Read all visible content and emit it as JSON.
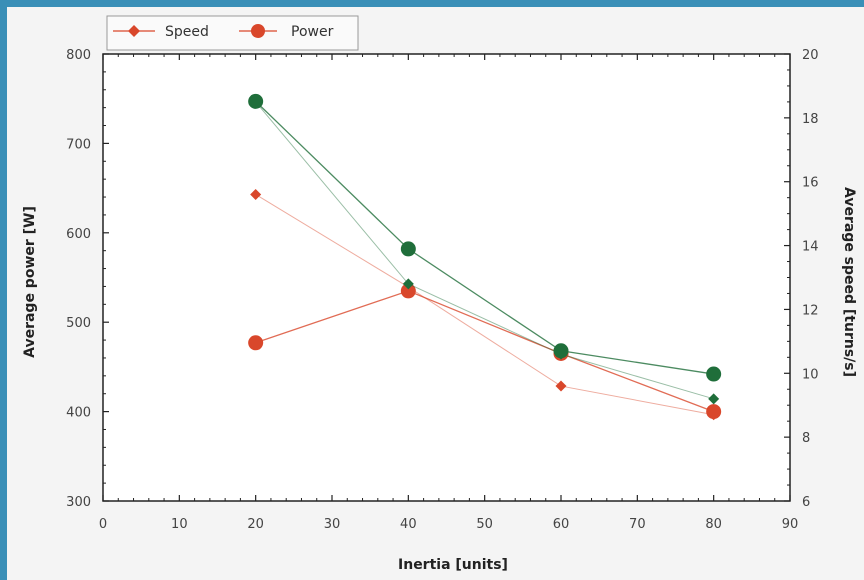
{
  "chart_data": {
    "type": "line",
    "xlabel": "Inertia [units]",
    "ylabel": "Average power [W]",
    "y2label": "Average speed [turns/s]",
    "xlim": [
      0,
      90
    ],
    "ylim": [
      300,
      800
    ],
    "y2lim": [
      6,
      20
    ],
    "xticks": [
      0,
      10,
      20,
      30,
      40,
      50,
      60,
      70,
      80,
      90
    ],
    "yticks": [
      300,
      400,
      500,
      600,
      700,
      800
    ],
    "y2ticks": [
      6,
      8,
      10,
      12,
      14,
      16,
      18,
      20
    ],
    "x": [
      20,
      40,
      60,
      80
    ],
    "legend": {
      "placement": "top-left",
      "entries": [
        "Speed",
        "Power"
      ]
    },
    "series": [
      {
        "name": "Speed",
        "axis": "right",
        "color": "#d9472b",
        "marker": "diamond",
        "values": [
          15.6,
          12.7,
          9.6,
          8.7
        ]
      },
      {
        "name": "Power",
        "axis": "left",
        "color": "#d9472b",
        "marker": "circle",
        "values": [
          477,
          535,
          465,
          400
        ]
      },
      {
        "axis": "right",
        "color": "#1f6e3a",
        "marker": "diamond",
        "values": [
          18.5,
          12.8,
          10.6,
          9.2
        ]
      },
      {
        "axis": "left",
        "color": "#1f6e3a",
        "marker": "circle",
        "values": [
          747,
          582,
          468,
          442
        ]
      }
    ],
    "grid": false
  }
}
